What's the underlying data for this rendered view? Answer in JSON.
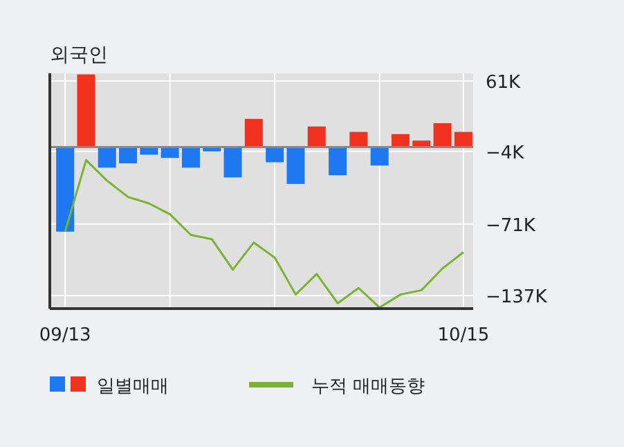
{
  "chart_data": {
    "type": "bar",
    "title": "외국인",
    "categories": [
      "09/13",
      null,
      null,
      null,
      null,
      null,
      null,
      null,
      null,
      null,
      null,
      null,
      null,
      null,
      null,
      null,
      null,
      null,
      null,
      "10/15"
    ],
    "series": [
      {
        "name": "일별매매",
        "colors": [
          "#1e78f0",
          "#f0321e",
          "#1e78f0",
          "#1e78f0",
          "#1e78f0",
          "#1e78f0",
          "#1e78f0",
          "#1e78f0",
          "#1e78f0",
          "#f0321e",
          "#1e78f0",
          "#1e78f0",
          "#f0321e",
          "#1e78f0",
          "#f0321e",
          "#1e78f0",
          "#f0321e",
          "#f0321e",
          "#f0321e",
          "#f0321e"
        ],
        "values": [
          -78,
          67,
          -19,
          -15,
          -7,
          -10,
          -19,
          -4,
          -28,
          26,
          -14,
          -34,
          19,
          -26,
          14,
          -17,
          12,
          6,
          22,
          14
        ]
      },
      {
        "name": "누적 매매동향",
        "type": "line",
        "color": "#78b432",
        "values": [
          -78,
          -12,
          -31,
          -46,
          -52,
          -62,
          -81,
          -85,
          -113,
          -88,
          -102,
          -136,
          -117,
          -144,
          -130,
          -148,
          -136,
          -132,
          -112,
          -97
        ]
      }
    ],
    "ylim": [
      -149,
      68
    ],
    "yticks": [
      {
        "value": 61,
        "label": "61K"
      },
      {
        "value": -4,
        "label": "−4K"
      },
      {
        "value": -71,
        "label": "−71K"
      },
      {
        "value": -137,
        "label": "−137K"
      }
    ],
    "grid": true,
    "legend": "bottom"
  }
}
